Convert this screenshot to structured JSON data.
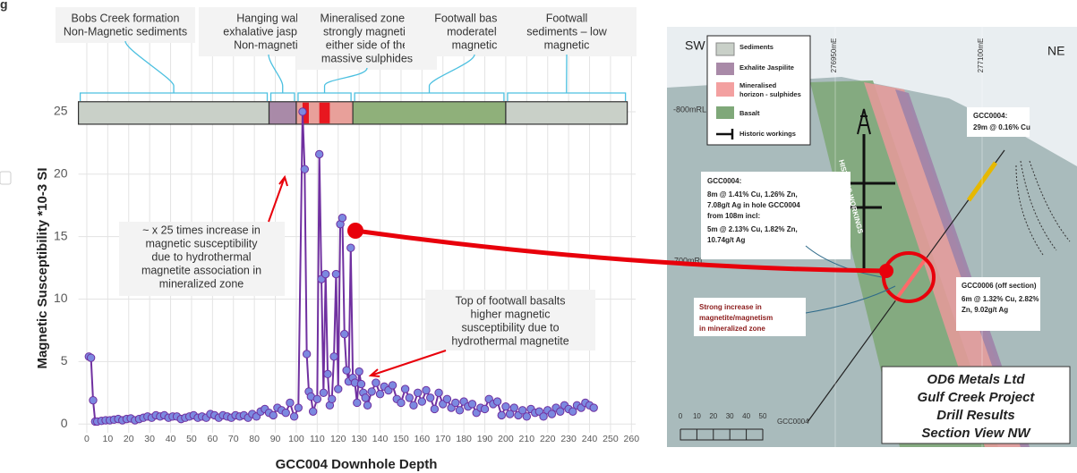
{
  "figure_label": "g",
  "chart_data": {
    "type": "line",
    "xlabel": "GCC004 Downhole Depth",
    "ylabel": "Magnetic Susceptibility *10-3 SI",
    "line_color": "#7030a0",
    "marker_color": "#7c89e0",
    "grid": true,
    "xlim": [
      -4,
      262
    ],
    "ylim": [
      -0.7,
      27
    ],
    "xticks": [
      0,
      10,
      20,
      30,
      40,
      50,
      60,
      70,
      80,
      90,
      100,
      110,
      120,
      130,
      140,
      150,
      160,
      170,
      180,
      190,
      200,
      210,
      220,
      230,
      240,
      250,
      260
    ],
    "yticks": [
      0,
      5,
      10,
      15,
      20,
      25
    ],
    "x": [
      1,
      2,
      3,
      4,
      5,
      7,
      9,
      11,
      13,
      15,
      17,
      19,
      21,
      23,
      25,
      27,
      29,
      31,
      33,
      35,
      37,
      39,
      41,
      43,
      45,
      47,
      49,
      51,
      53,
      55,
      57,
      59,
      61,
      63,
      65,
      67,
      69,
      71,
      73,
      75,
      77,
      79,
      81,
      83,
      85,
      87,
      89,
      91,
      93,
      95,
      97,
      99,
      101,
      103,
      104,
      105,
      106,
      107,
      108,
      110,
      111,
      112,
      113,
      114,
      115,
      116,
      117,
      118,
      119,
      120,
      121,
      122,
      123,
      124,
      125,
      126,
      127,
      128,
      129,
      130,
      131,
      132,
      133,
      134,
      136,
      138,
      140,
      142,
      144,
      146,
      148,
      150,
      152,
      154,
      156,
      158,
      160,
      162,
      164,
      166,
      168,
      170,
      172,
      174,
      176,
      178,
      180,
      182,
      184,
      186,
      188,
      190,
      192,
      194,
      196,
      198,
      200,
      202,
      204,
      206,
      208,
      210,
      212,
      214,
      216,
      218,
      220,
      222,
      224,
      226,
      228,
      230,
      232,
      234,
      236,
      238,
      240,
      242
    ],
    "values": [
      5.4,
      5.3,
      1.9,
      0.2,
      0.2,
      0.25,
      0.3,
      0.3,
      0.35,
      0.4,
      0.3,
      0.4,
      0.45,
      0.3,
      0.4,
      0.5,
      0.6,
      0.5,
      0.7,
      0.6,
      0.7,
      0.5,
      0.6,
      0.6,
      0.4,
      0.5,
      0.6,
      0.7,
      0.5,
      0.6,
      0.5,
      0.8,
      0.7,
      0.5,
      0.7,
      0.6,
      0.5,
      0.7,
      0.6,
      0.7,
      0.5,
      0.8,
      0.6,
      1.0,
      1.2,
      0.9,
      0.7,
      1.3,
      1.1,
      0.9,
      1.7,
      0.6,
      1.3,
      25,
      20.4,
      5.6,
      2.6,
      2.2,
      1.0,
      2.0,
      21.6,
      11.6,
      2.5,
      12.0,
      4.0,
      1.5,
      2.0,
      5.4,
      12.0,
      2.8,
      16.0,
      16.5,
      7.2,
      4.3,
      3.4,
      14.1,
      3.7,
      3.3,
      1.7,
      4.2,
      3.2,
      2.5,
      2.1,
      1.5,
      2.6,
      3.3,
      2.4,
      3.0,
      2.7,
      3.1,
      2.0,
      1.7,
      2.8,
      2.1,
      1.5,
      2.5,
      1.8,
      2.7,
      2.1,
      1.2,
      2.5,
      1.6,
      2.0,
      1.3,
      1.7,
      1.1,
      1.8,
      1.4,
      1.6,
      0.9,
      1.3,
      1.2,
      2.0,
      1.6,
      1.8,
      0.7,
      1.4,
      0.8,
      1.3,
      0.7,
      1.1,
      0.6,
      1.2,
      0.9,
      1.0,
      0.6,
      1.1,
      0.8,
      1.3,
      1.0,
      1.5,
      1.2,
      1.0,
      1.5,
      1.3,
      1.7,
      1.5,
      1.3
    ],
    "zone_band": [
      24,
      25.8
    ],
    "zones": [
      {
        "label": [
          "Bobs Creek formation",
          "Non-Magnetic sediments"
        ],
        "from": -4,
        "to": 87,
        "color": "#c9d0c8"
      },
      {
        "label": [
          "Hanging wall",
          "exhalative jaspilite",
          "Non-magnetic"
        ],
        "from": 87,
        "to": 100,
        "color": "#a98aa8"
      },
      {
        "label": [
          "Mineralised zone –",
          "strongly magnetic",
          "either side of the",
          "massive sulphides"
        ],
        "from": 100,
        "to": 127,
        "color": "#e8a09a"
      },
      {
        "label": [
          "Footwall basalts",
          "moderately",
          "magnetic"
        ],
        "from": 127,
        "to": 200,
        "color": "#8fb07a"
      },
      {
        "label": [
          "Footwall",
          "sediments – low",
          "magnetic"
        ],
        "from": 200,
        "to": 258,
        "color": "#c9d0c8"
      }
    ],
    "sulphide_intervals": [
      [
        103,
        106
      ],
      [
        111,
        116
      ]
    ],
    "sulphide_color": "#e8171f",
    "annotations": [
      {
        "text": [
          "~ x 25 times increase in",
          "magnetic susceptibility",
          "due to hydrothermal",
          "magnetite association in",
          "mineralized zone"
        ]
      },
      {
        "text": [
          "Top of footwall basalts",
          "higher magnetic",
          "susceptibility due to",
          "hydrothermal magnetite"
        ]
      }
    ]
  },
  "section": {
    "sw": "SW",
    "ne": "NE",
    "easting_1": "276950mE",
    "easting_2": "277100mE",
    "rl_1": "-800mRL",
    "rl_2": "-700mRL",
    "legend": [
      "Sediments",
      "Exhalite Jaspilite",
      [
        "Mineralised",
        "horizon - sulphides"
      ],
      "Basalt",
      "Historic workings"
    ],
    "callout_1": [
      "GCC0004:",
      "29m @ 0.16% Cu"
    ],
    "callout_2": [
      "GCC0004:",
      "8m @ 1.41% Cu, 1.26% Zn,",
      "7.08g/t Ag in hole GCC0004",
      "from 108m incl:",
      "5m @ 2.13% Cu, 1.82% Zn,",
      "10.74g/t Ag"
    ],
    "callout_3": [
      "Strong increase in",
      "magnetite/magnetism",
      "in mineralized zone"
    ],
    "callout_4": [
      "GCC0006 (off section)",
      "6m @ 1.32% Cu, 2.82%",
      "Zn, 9.02g/t Ag"
    ],
    "workings_label": "HISTORIC WORKINGS",
    "hole_label": "GCC0004",
    "scale_labels": [
      "0",
      "10",
      "20",
      "30",
      "40",
      "50"
    ],
    "title": [
      "OD6 Metals Ltd",
      "Gulf Creek Project",
      "Drill Results",
      "Section View NW"
    ]
  }
}
